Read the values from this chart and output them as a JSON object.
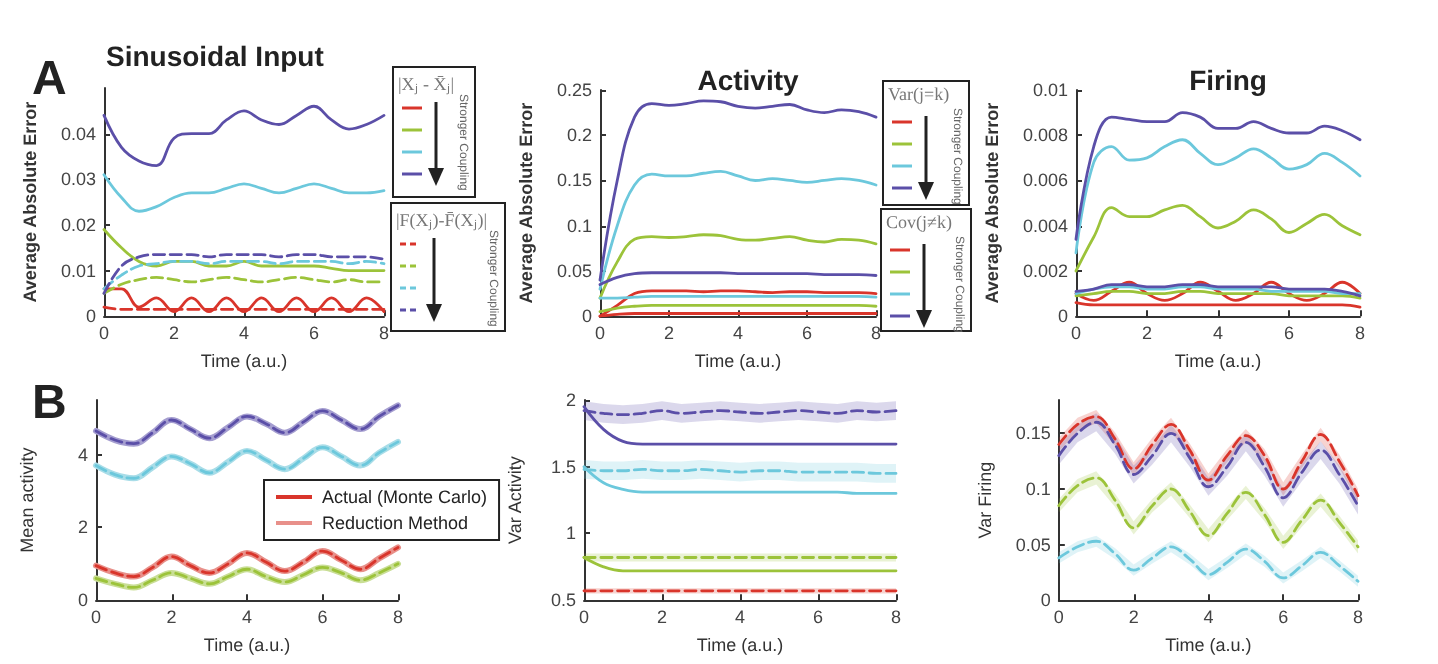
{
  "chart_data": [
    {
      "type": "line",
      "title": "Sinusoidal Input",
      "xlabel": "Time (a.u.)",
      "ylabel": "Average Absolute Error",
      "annotations": [
        "|Xⱼ - X̄ⱼ|",
        "Stronger Coupling",
        "|F(Xⱼ)-F̄(Xⱼ)|",
        "Stronger Coupling",
        "A"
      ],
      "grid": false,
      "x": [
        0,
        0.5,
        1,
        1.5,
        2,
        2.5,
        3,
        3.5,
        4,
        4.5,
        5,
        5.5,
        6,
        6.5,
        7,
        7.5,
        8
      ],
      "xlim": [
        0,
        8
      ],
      "xticks": [
        0,
        2,
        4,
        6,
        8
      ],
      "ylim": [
        0,
        0.05
      ],
      "yticks": [
        0,
        0.01,
        0.02,
        0.03,
        0.04
      ],
      "series": [
        {
          "color": "#d9352b",
          "line_style": "solid",
          "values": [
            0.006,
            0.006,
            0.002,
            0.004,
            0.001,
            0.004,
            0.001,
            0.004,
            0.001,
            0.004,
            0.001,
            0.004,
            0.001,
            0.004,
            0.001,
            0.004,
            0.001
          ]
        },
        {
          "color": "#9cc33a",
          "line_style": "solid",
          "values": [
            0.019,
            0.015,
            0.012,
            0.011,
            0.012,
            0.012,
            0.011,
            0.011,
            0.012,
            0.011,
            0.011,
            0.011,
            0.011,
            0.0105,
            0.01,
            0.01,
            0.01
          ]
        },
        {
          "color": "#6cc8dc",
          "line_style": "solid",
          "values": [
            0.031,
            0.026,
            0.023,
            0.024,
            0.026,
            0.027,
            0.027,
            0.028,
            0.029,
            0.028,
            0.027,
            0.028,
            0.029,
            0.028,
            0.027,
            0.027,
            0.0275
          ]
        },
        {
          "color": "#5b4fa8",
          "line_style": "solid",
          "values": [
            0.044,
            0.037,
            0.034,
            0.033,
            0.039,
            0.04,
            0.04,
            0.043,
            0.045,
            0.043,
            0.042,
            0.044,
            0.046,
            0.043,
            0.041,
            0.042,
            0.044
          ]
        },
        {
          "color": "#d9352b",
          "line_style": "dashed",
          "values": [
            0.002,
            0.0015,
            0.0015,
            0.0015,
            0.0015,
            0.0015,
            0.0015,
            0.0015,
            0.0015,
            0.0015,
            0.0015,
            0.0015,
            0.0015,
            0.0015,
            0.0015,
            0.0015,
            0.0015
          ]
        },
        {
          "color": "#9cc33a",
          "line_style": "dashed",
          "values": [
            0.005,
            0.007,
            0.008,
            0.0085,
            0.008,
            0.0075,
            0.008,
            0.0085,
            0.008,
            0.0075,
            0.008,
            0.0085,
            0.008,
            0.0075,
            0.008,
            0.0075,
            0.0075
          ]
        },
        {
          "color": "#6cc8dc",
          "line_style": "dashed",
          "values": [
            0.006,
            0.009,
            0.011,
            0.0115,
            0.012,
            0.012,
            0.0115,
            0.012,
            0.012,
            0.012,
            0.0115,
            0.012,
            0.012,
            0.012,
            0.0115,
            0.012,
            0.0115
          ]
        },
        {
          "color": "#5b4fa8",
          "line_style": "dashed",
          "values": [
            0.005,
            0.011,
            0.013,
            0.0135,
            0.0135,
            0.0135,
            0.013,
            0.0135,
            0.0135,
            0.0135,
            0.013,
            0.0135,
            0.0135,
            0.013,
            0.013,
            0.013,
            0.0125
          ]
        }
      ]
    },
    {
      "type": "line",
      "title": "Activity",
      "xlabel": "Time (a.u.)",
      "ylabel": "Average Absolute Error",
      "annotations": [
        "Var(j=k)",
        "Stronger Coupling",
        "Cov(j≠k)",
        "Stronger Coupling"
      ],
      "grid": false,
      "x": [
        0,
        0.5,
        1,
        1.5,
        2,
        2.5,
        3,
        3.5,
        4,
        4.5,
        5,
        5.5,
        6,
        6.5,
        7,
        7.5,
        8
      ],
      "xlim": [
        0,
        8
      ],
      "xticks": [
        0,
        2,
        4,
        6,
        8
      ],
      "ylim": [
        0,
        0.25
      ],
      "yticks": [
        0,
        0.05,
        0.1,
        0.15,
        0.2,
        0.25
      ],
      "series": [
        {
          "color": "#d9352b",
          "line_style": "solid",
          "values": [
            0,
            0.012,
            0.025,
            0.028,
            0.028,
            0.028,
            0.027,
            0.028,
            0.028,
            0.027,
            0.026,
            0.027,
            0.027,
            0.026,
            0.026,
            0.026,
            0.025
          ]
        },
        {
          "color": "#9cc33a",
          "line_style": "solid",
          "values": [
            0.02,
            0.06,
            0.085,
            0.088,
            0.087,
            0.088,
            0.09,
            0.089,
            0.085,
            0.084,
            0.086,
            0.088,
            0.084,
            0.082,
            0.085,
            0.084,
            0.08
          ]
        },
        {
          "color": "#6cc8dc",
          "line_style": "solid",
          "values": [
            0.03,
            0.1,
            0.145,
            0.157,
            0.155,
            0.155,
            0.158,
            0.16,
            0.155,
            0.15,
            0.152,
            0.15,
            0.148,
            0.15,
            0.152,
            0.15,
            0.145
          ]
        },
        {
          "color": "#5b4fa8",
          "line_style": "solid",
          "values": [
            0.04,
            0.15,
            0.22,
            0.235,
            0.233,
            0.235,
            0.238,
            0.237,
            0.232,
            0.23,
            0.232,
            0.234,
            0.228,
            0.225,
            0.228,
            0.226,
            0.22
          ]
        },
        {
          "color": "#d9352b",
          "line_style": "solid",
          "values": [
            0,
            0.002,
            0.003,
            0.003,
            0.003,
            0.003,
            0.003,
            0.003,
            0.003,
            0.003,
            0.003,
            0.003,
            0.003,
            0.003,
            0.003,
            0.003,
            0.003
          ]
        },
        {
          "color": "#9cc33a",
          "line_style": "solid",
          "values": [
            0.005,
            0.009,
            0.011,
            0.012,
            0.012,
            0.012,
            0.012,
            0.012,
            0.012,
            0.012,
            0.012,
            0.012,
            0.012,
            0.012,
            0.012,
            0.012,
            0.011
          ]
        },
        {
          "color": "#6cc8dc",
          "line_style": "solid",
          "values": [
            0.02,
            0.02,
            0.021,
            0.022,
            0.022,
            0.022,
            0.022,
            0.022,
            0.022,
            0.022,
            0.022,
            0.022,
            0.022,
            0.022,
            0.022,
            0.022,
            0.021
          ]
        },
        {
          "color": "#5b4fa8",
          "line_style": "solid",
          "values": [
            0.035,
            0.043,
            0.047,
            0.048,
            0.048,
            0.048,
            0.048,
            0.048,
            0.047,
            0.047,
            0.047,
            0.047,
            0.047,
            0.046,
            0.046,
            0.046,
            0.045
          ]
        }
      ]
    },
    {
      "type": "line",
      "title": "Firing",
      "xlabel": "Time (a.u.)",
      "ylabel": "Average Absolute Error",
      "grid": false,
      "x": [
        0,
        0.5,
        1,
        1.5,
        2,
        2.5,
        3,
        3.5,
        4,
        4.5,
        5,
        5.5,
        6,
        6.5,
        7,
        7.5,
        8
      ],
      "xlim": [
        0,
        8
      ],
      "xticks": [
        0,
        2,
        4,
        6,
        8
      ],
      "ylim": [
        0,
        0.01
      ],
      "yticks": [
        0,
        0.002,
        0.004,
        0.006,
        0.008,
        0.01
      ],
      "series": [
        {
          "color": "#d9352b",
          "line_style": "solid",
          "values": [
            0.001,
            0.0007,
            0.0011,
            0.0015,
            0.001,
            0.0007,
            0.001,
            0.0015,
            0.0011,
            0.0007,
            0.001,
            0.0015,
            0.001,
            0.0007,
            0.001,
            0.0015,
            0.001
          ]
        },
        {
          "color": "#9cc33a",
          "line_style": "solid",
          "values": [
            0.002,
            0.0035,
            0.0048,
            0.0044,
            0.0044,
            0.0047,
            0.0049,
            0.0044,
            0.0039,
            0.0042,
            0.0047,
            0.0043,
            0.0037,
            0.0041,
            0.0045,
            0.004,
            0.0036
          ]
        },
        {
          "color": "#6cc8dc",
          "line_style": "solid",
          "values": [
            0.0028,
            0.0068,
            0.0075,
            0.0069,
            0.007,
            0.0075,
            0.0078,
            0.0072,
            0.0067,
            0.007,
            0.0074,
            0.007,
            0.0065,
            0.0067,
            0.0072,
            0.0068,
            0.0062
          ]
        },
        {
          "color": "#5b4fa8",
          "line_style": "solid",
          "values": [
            0.0034,
            0.0075,
            0.0088,
            0.0087,
            0.0086,
            0.0086,
            0.009,
            0.0088,
            0.0083,
            0.0083,
            0.0086,
            0.0083,
            0.0081,
            0.0081,
            0.0084,
            0.0082,
            0.0078
          ]
        },
        {
          "color": "#d9352b",
          "line_style": "solid",
          "values": [
            0.0006,
            0.0005,
            0.0005,
            0.0005,
            0.0005,
            0.0005,
            0.0005,
            0.0005,
            0.0005,
            0.0005,
            0.0005,
            0.0005,
            0.0005,
            0.0005,
            0.0005,
            0.0005,
            0.0004
          ]
        },
        {
          "color": "#9cc33a",
          "line_style": "solid",
          "values": [
            0.0009,
            0.001,
            0.0011,
            0.0011,
            0.001,
            0.001,
            0.0011,
            0.0011,
            0.001,
            0.001,
            0.001,
            0.001,
            0.0009,
            0.0009,
            0.0009,
            0.0009,
            0.0008
          ]
        },
        {
          "color": "#6cc8dc",
          "line_style": "solid",
          "values": [
            0.001,
            0.0012,
            0.0013,
            0.0013,
            0.0012,
            0.0012,
            0.0013,
            0.0013,
            0.0012,
            0.0012,
            0.0012,
            0.0011,
            0.0011,
            0.0011,
            0.0011,
            0.001,
            0.001
          ]
        },
        {
          "color": "#5b4fa8",
          "line_style": "solid",
          "values": [
            0.0011,
            0.0012,
            0.0014,
            0.0014,
            0.0013,
            0.0013,
            0.0014,
            0.0014,
            0.0013,
            0.0013,
            0.0013,
            0.0013,
            0.0012,
            0.0012,
            0.0012,
            0.0011,
            0.0009
          ]
        }
      ]
    },
    {
      "type": "line",
      "xlabel": "Time (a.u.)",
      "ylabel": "Mean activity",
      "annotations": [
        "B"
      ],
      "legend": "right",
      "grid": false,
      "x": [
        0,
        0.5,
        1,
        1.5,
        2,
        2.5,
        3,
        3.5,
        4,
        4.5,
        5,
        5.5,
        6,
        6.5,
        7,
        7.5,
        8
      ],
      "xlim": [
        0,
        8
      ],
      "xticks": [
        0,
        2,
        4,
        6,
        8
      ],
      "ylim": [
        0,
        5.5
      ],
      "yticks": [
        0,
        2,
        4
      ],
      "series": [
        {
          "name": "Actual (Monte Carlo)",
          "color": "#d9352b",
          "line_style": "dashed",
          "values": [
            0.95,
            0.75,
            0.65,
            0.9,
            1.2,
            0.95,
            0.75,
            1.0,
            1.3,
            1.05,
            0.8,
            1.05,
            1.35,
            1.1,
            0.85,
            1.15,
            1.45
          ]
        },
        {
          "color": "#9cc33a",
          "line_style": "dashed",
          "values": [
            0.6,
            0.45,
            0.35,
            0.55,
            0.75,
            0.6,
            0.45,
            0.65,
            0.85,
            0.65,
            0.5,
            0.7,
            0.9,
            0.75,
            0.55,
            0.75,
            1.0
          ]
        },
        {
          "color": "#6cc8dc",
          "line_style": "dashed",
          "values": [
            3.7,
            3.45,
            3.35,
            3.65,
            3.95,
            3.75,
            3.5,
            3.8,
            4.1,
            3.85,
            3.6,
            3.9,
            4.2,
            3.95,
            3.7,
            4.05,
            4.35
          ]
        },
        {
          "color": "#5b4fa8",
          "line_style": "dashed",
          "values": [
            4.65,
            4.4,
            4.3,
            4.6,
            4.95,
            4.7,
            4.45,
            4.75,
            5.05,
            4.85,
            4.6,
            4.9,
            5.2,
            4.95,
            4.7,
            5.05,
            5.35
          ]
        },
        {
          "name": "Reduction Method",
          "color": "#e8908a",
          "line_style": "solid",
          "values": [
            0.95,
            0.75,
            0.65,
            0.9,
            1.2,
            0.95,
            0.75,
            1.0,
            1.3,
            1.05,
            0.8,
            1.05,
            1.35,
            1.1,
            0.85,
            1.15,
            1.45
          ]
        },
        {
          "color": "#c9de96",
          "line_style": "solid",
          "values": [
            0.6,
            0.45,
            0.35,
            0.55,
            0.75,
            0.6,
            0.45,
            0.65,
            0.85,
            0.65,
            0.5,
            0.7,
            0.9,
            0.75,
            0.55,
            0.75,
            1.0
          ]
        },
        {
          "color": "#a9dde8",
          "line_style": "solid",
          "values": [
            3.7,
            3.45,
            3.35,
            3.65,
            3.95,
            3.75,
            3.5,
            3.8,
            4.1,
            3.85,
            3.6,
            3.9,
            4.2,
            3.95,
            3.7,
            4.05,
            4.35
          ]
        },
        {
          "color": "#a59ed0",
          "line_style": "solid",
          "values": [
            4.65,
            4.4,
            4.3,
            4.6,
            4.95,
            4.7,
            4.45,
            4.75,
            5.05,
            4.85,
            4.6,
            4.9,
            5.2,
            4.95,
            4.7,
            5.05,
            5.35
          ]
        }
      ]
    },
    {
      "type": "line",
      "xlabel": "Time (a.u.)",
      "ylabel": "Var Activity",
      "grid": false,
      "x": [
        0,
        0.5,
        1,
        1.5,
        2,
        2.5,
        3,
        3.5,
        4,
        4.5,
        5,
        5.5,
        6,
        6.5,
        7,
        7.5,
        8
      ],
      "xlim": [
        0,
        8
      ],
      "xticks": [
        0,
        2,
        4,
        6,
        8
      ],
      "ylim": [
        0.5,
        2
      ],
      "yticks": [
        0.5,
        1,
        1.5,
        2
      ],
      "series": [
        {
          "color": "#5b4fa8",
          "line_style": "solid",
          "values": [
            1.95,
            1.78,
            1.69,
            1.67,
            1.67,
            1.67,
            1.67,
            1.67,
            1.67,
            1.67,
            1.67,
            1.67,
            1.67,
            1.67,
            1.67,
            1.67,
            1.67
          ]
        },
        {
          "color": "#6cc8dc",
          "line_style": "solid",
          "values": [
            1.5,
            1.38,
            1.33,
            1.31,
            1.31,
            1.31,
            1.31,
            1.31,
            1.31,
            1.31,
            1.31,
            1.31,
            1.31,
            1.31,
            1.3,
            1.3,
            1.3
          ]
        },
        {
          "color": "#9cc33a",
          "line_style": "solid",
          "values": [
            0.82,
            0.75,
            0.72,
            0.72,
            0.72,
            0.72,
            0.72,
            0.72,
            0.72,
            0.72,
            0.72,
            0.72,
            0.72,
            0.72,
            0.72,
            0.72,
            0.72
          ]
        },
        {
          "color": "#5b4fa8",
          "line_style": "dashed",
          "values": [
            1.92,
            1.9,
            1.89,
            1.9,
            1.92,
            1.9,
            1.91,
            1.92,
            1.91,
            1.9,
            1.91,
            1.92,
            1.91,
            1.9,
            1.92,
            1.91,
            1.92
          ],
          "lower": [
            1.85,
            1.83,
            1.82,
            1.83,
            1.85,
            1.83,
            1.84,
            1.85,
            1.84,
            1.83,
            1.84,
            1.85,
            1.84,
            1.83,
            1.85,
            1.84,
            1.85
          ],
          "upper": [
            1.99,
            1.97,
            1.96,
            1.97,
            1.99,
            1.97,
            1.98,
            1.99,
            1.98,
            1.97,
            1.98,
            1.99,
            1.98,
            1.97,
            1.99,
            1.98,
            1.99
          ]
        },
        {
          "color": "#6cc8dc",
          "line_style": "dashed",
          "values": [
            1.48,
            1.47,
            1.47,
            1.48,
            1.47,
            1.47,
            1.48,
            1.47,
            1.46,
            1.47,
            1.47,
            1.46,
            1.46,
            1.46,
            1.46,
            1.45,
            1.45
          ],
          "lower": [
            1.41,
            1.4,
            1.4,
            1.41,
            1.4,
            1.4,
            1.41,
            1.4,
            1.39,
            1.4,
            1.4,
            1.39,
            1.39,
            1.39,
            1.39,
            1.38,
            1.38
          ],
          "upper": [
            1.55,
            1.54,
            1.54,
            1.55,
            1.54,
            1.54,
            1.55,
            1.54,
            1.53,
            1.54,
            1.54,
            1.53,
            1.53,
            1.53,
            1.53,
            1.52,
            1.52
          ]
        },
        {
          "color": "#9cc33a",
          "line_style": "dashed",
          "values": [
            0.82,
            0.82,
            0.82,
            0.82,
            0.82,
            0.82,
            0.82,
            0.82,
            0.82,
            0.82,
            0.82,
            0.82,
            0.82,
            0.82,
            0.82,
            0.82,
            0.82
          ],
          "lower": [
            0.79,
            0.79,
            0.79,
            0.79,
            0.79,
            0.79,
            0.79,
            0.79,
            0.79,
            0.79,
            0.79,
            0.79,
            0.79,
            0.79,
            0.79,
            0.79,
            0.79
          ],
          "upper": [
            0.85,
            0.85,
            0.85,
            0.85,
            0.85,
            0.85,
            0.85,
            0.85,
            0.85,
            0.85,
            0.85,
            0.85,
            0.85,
            0.85,
            0.85,
            0.85,
            0.85
          ]
        },
        {
          "color": "#d9352b",
          "line_style": "dashed",
          "values": [
            0.57,
            0.57,
            0.57,
            0.57,
            0.57,
            0.57,
            0.57,
            0.57,
            0.57,
            0.57,
            0.57,
            0.57,
            0.57,
            0.57,
            0.57,
            0.57,
            0.57
          ],
          "lower": [
            0.55,
            0.55,
            0.55,
            0.55,
            0.55,
            0.55,
            0.55,
            0.55,
            0.55,
            0.55,
            0.55,
            0.55,
            0.55,
            0.55,
            0.55,
            0.55,
            0.55
          ],
          "upper": [
            0.59,
            0.59,
            0.59,
            0.59,
            0.59,
            0.59,
            0.59,
            0.59,
            0.59,
            0.59,
            0.59,
            0.59,
            0.59,
            0.59,
            0.59,
            0.59,
            0.59
          ]
        }
      ]
    },
    {
      "type": "line",
      "xlabel": "Time (a.u.)",
      "ylabel": "Var Firing",
      "grid": false,
      "x": [
        0,
        0.5,
        1,
        1.5,
        2,
        2.5,
        3,
        3.5,
        4,
        4.5,
        5,
        5.5,
        6,
        6.5,
        7,
        7.5,
        8
      ],
      "xlim": [
        0,
        8
      ],
      "xticks": [
        0,
        2,
        4,
        6,
        8
      ],
      "ylim": [
        0,
        0.18
      ],
      "yticks": [
        0,
        0.05,
        0.1,
        0.15
      ],
      "series": [
        {
          "color": "#d9352b",
          "line_style": "dashed",
          "values": [
            0.14,
            0.158,
            0.165,
            0.145,
            0.118,
            0.14,
            0.158,
            0.135,
            0.108,
            0.13,
            0.148,
            0.13,
            0.1,
            0.125,
            0.149,
            0.125,
            0.094
          ],
          "lower": [
            0.134,
            0.152,
            0.159,
            0.139,
            0.112,
            0.134,
            0.152,
            0.129,
            0.102,
            0.124,
            0.142,
            0.124,
            0.094,
            0.119,
            0.143,
            0.119,
            0.088
          ],
          "upper": [
            0.146,
            0.164,
            0.171,
            0.151,
            0.124,
            0.146,
            0.164,
            0.141,
            0.114,
            0.136,
            0.154,
            0.136,
            0.106,
            0.131,
            0.155,
            0.131,
            0.1
          ]
        },
        {
          "color": "#5b4fa8",
          "line_style": "dashed",
          "values": [
            0.13,
            0.15,
            0.16,
            0.14,
            0.113,
            0.13,
            0.15,
            0.128,
            0.102,
            0.12,
            0.142,
            0.12,
            0.092,
            0.115,
            0.135,
            0.113,
            0.085
          ],
          "lower": [
            0.122,
            0.142,
            0.152,
            0.132,
            0.105,
            0.122,
            0.142,
            0.12,
            0.094,
            0.112,
            0.134,
            0.112,
            0.084,
            0.107,
            0.127,
            0.105,
            0.077
          ],
          "upper": [
            0.138,
            0.158,
            0.168,
            0.148,
            0.121,
            0.138,
            0.158,
            0.136,
            0.11,
            0.128,
            0.15,
            0.128,
            0.1,
            0.123,
            0.143,
            0.121,
            0.093
          ]
        },
        {
          "color": "#9cc33a",
          "line_style": "dashed",
          "values": [
            0.085,
            0.103,
            0.11,
            0.09,
            0.065,
            0.085,
            0.1,
            0.08,
            0.058,
            0.078,
            0.097,
            0.077,
            0.052,
            0.072,
            0.09,
            0.07,
            0.048
          ],
          "lower": [
            0.079,
            0.097,
            0.104,
            0.084,
            0.059,
            0.079,
            0.094,
            0.074,
            0.052,
            0.072,
            0.091,
            0.071,
            0.046,
            0.066,
            0.084,
            0.064,
            0.042
          ],
          "upper": [
            0.091,
            0.109,
            0.116,
            0.096,
            0.071,
            0.091,
            0.106,
            0.086,
            0.064,
            0.084,
            0.103,
            0.083,
            0.058,
            0.078,
            0.096,
            0.076,
            0.054
          ]
        },
        {
          "color": "#6cc8dc",
          "line_style": "dashed",
          "values": [
            0.038,
            0.048,
            0.053,
            0.042,
            0.027,
            0.038,
            0.048,
            0.037,
            0.023,
            0.034,
            0.046,
            0.035,
            0.02,
            0.031,
            0.043,
            0.031,
            0.017
          ],
          "lower": [
            0.033,
            0.043,
            0.048,
            0.037,
            0.022,
            0.033,
            0.043,
            0.032,
            0.018,
            0.029,
            0.041,
            0.03,
            0.015,
            0.026,
            0.038,
            0.026,
            0.012
          ],
          "upper": [
            0.043,
            0.053,
            0.058,
            0.047,
            0.032,
            0.043,
            0.053,
            0.042,
            0.028,
            0.039,
            0.051,
            0.04,
            0.025,
            0.036,
            0.048,
            0.036,
            0.022
          ]
        }
      ]
    }
  ]
}
